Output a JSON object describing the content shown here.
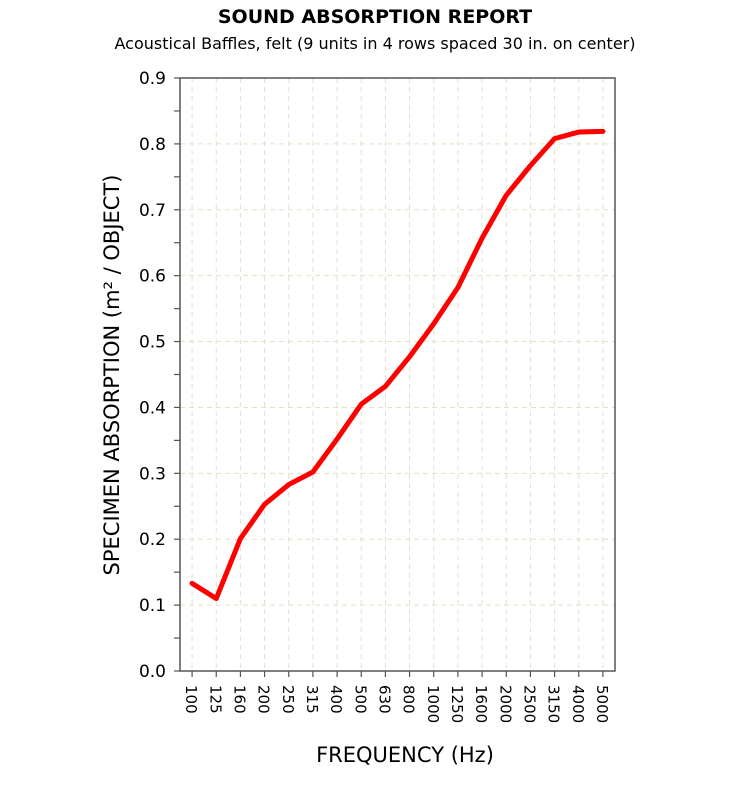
{
  "chart_data": {
    "type": "line",
    "title": "SOUND ABSORPTION REPORT",
    "subtitle": "Acoustical Baffles, felt (9 units in 4 rows spaced 30 in. on center)",
    "xlabel": "FREQUENCY (Hz)",
    "ylabel": "SPECIMEN ABSORPTION (m² / OBJECT)",
    "categories": [
      "100",
      "125",
      "160",
      "200",
      "250",
      "315",
      "400",
      "500",
      "630",
      "800",
      "1000",
      "1250",
      "1600",
      "2000",
      "2500",
      "3150",
      "4000",
      "5000"
    ],
    "series": [
      {
        "values": [
          0.133,
          0.11,
          0.201,
          0.253,
          0.283,
          0.302,
          0.352,
          0.405,
          0.432,
          0.477,
          0.527,
          0.582,
          0.657,
          0.722,
          0.767,
          0.808,
          0.818,
          0.819
        ],
        "color": "#ff0000"
      }
    ],
    "ylim": [
      0,
      0.9
    ],
    "yticks": [
      "0.0",
      "0.1",
      "0.2",
      "0.3",
      "0.4",
      "0.5",
      "0.6",
      "0.7",
      "0.8",
      "0.9"
    ],
    "grid": true,
    "grid_color": "#e6dfc8"
  }
}
